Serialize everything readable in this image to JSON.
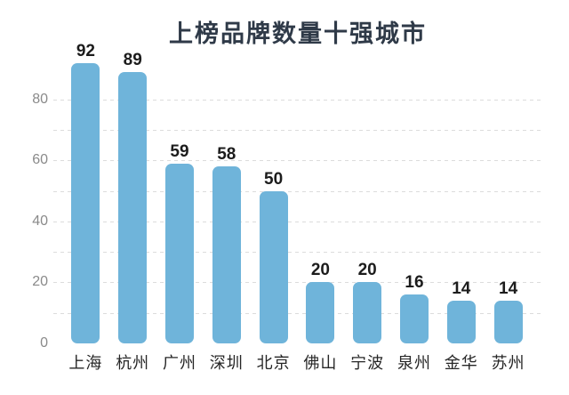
{
  "title": "上榜品牌数量十强城市",
  "colors": {
    "background": "#ffffff",
    "bar": "#6fb4da",
    "title": "#2f3a48",
    "axis_tick_label": "#8a8a8a",
    "value_label": "#1c1c1c",
    "category_label": "#262626",
    "gridline": "#dcdcdc"
  },
  "chart_data": {
    "type": "bar",
    "title": "上榜品牌数量十强城市",
    "categories": [
      "上海",
      "杭州",
      "广州",
      "深圳",
      "北京",
      "佛山",
      "宁波",
      "泉州",
      "金华",
      "苏州"
    ],
    "values": [
      92,
      89,
      59,
      58,
      50,
      20,
      20,
      16,
      14,
      14
    ],
    "xlabel": "",
    "ylabel": "",
    "yticks": [
      0,
      20,
      40,
      60,
      80
    ],
    "ylim": [
      0,
      100
    ],
    "gridline_step": 10,
    "grid": "horizontal-dashed",
    "legend": "none",
    "value_labels": true
  }
}
